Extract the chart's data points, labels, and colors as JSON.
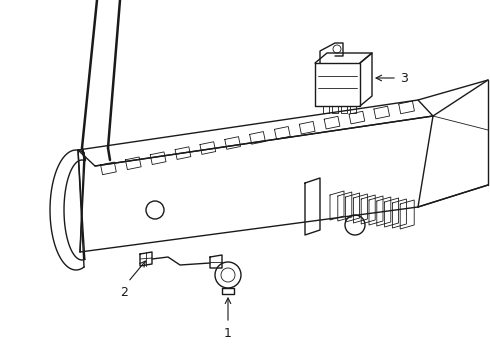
{
  "bg_color": "#ffffff",
  "line_color": "#1a1a1a",
  "lw_main": 1.0,
  "lw_thin": 0.6,
  "label1": "1",
  "label2": "2",
  "label3": "3",
  "fig_width": 4.9,
  "fig_height": 3.6,
  "dpi": 100
}
